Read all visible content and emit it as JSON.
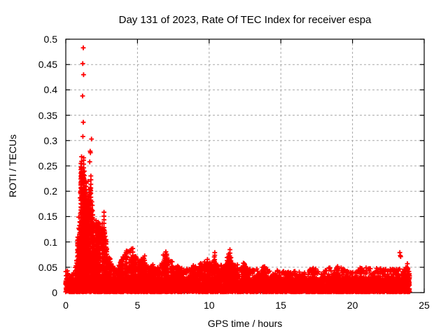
{
  "chart_data": {
    "type": "scatter",
    "title": "Day 131 of 2023, Rate Of TEC Index for receiver espa",
    "xlabel": "GPS time / hours",
    "ylabel": "ROTI / TECUs",
    "xlim": [
      0,
      25
    ],
    "ylim": [
      0,
      0.5
    ],
    "xtick_values": [
      0,
      5,
      10,
      15,
      20,
      25
    ],
    "xtick_labels": [
      "0",
      "5",
      "10",
      "15",
      "20",
      "25"
    ],
    "ytick_values": [
      0,
      0.05,
      0.1,
      0.15,
      0.2,
      0.25,
      0.3,
      0.35,
      0.4,
      0.45,
      0.5
    ],
    "ytick_labels": [
      "0",
      "0.05",
      "0.1",
      "0.15",
      "0.2",
      "0.25",
      "0.3",
      "0.35",
      "0.4",
      "0.45",
      "0.5"
    ],
    "grid": true,
    "legend": "none",
    "marker": "plus",
    "colors": {
      "marker": "#ff0000",
      "grid": "#a8a8a8",
      "axis": "#000000",
      "text": "#000000",
      "background": "#ffffff"
    },
    "data_time_range_hours": [
      0,
      24
    ],
    "baseline_band_max_tecu": 0.03,
    "envelope_max_roti": [
      [
        0.0,
        0.055
      ],
      [
        0.15,
        0.04
      ],
      [
        0.3,
        0.032
      ],
      [
        0.5,
        0.038
      ],
      [
        0.7,
        0.06
      ],
      [
        0.85,
        0.13
      ],
      [
        1.0,
        0.24
      ],
      [
        1.1,
        0.29
      ],
      [
        1.25,
        0.3
      ],
      [
        1.4,
        0.27
      ],
      [
        1.55,
        0.26
      ],
      [
        1.7,
        0.26
      ],
      [
        1.85,
        0.21
      ],
      [
        2.0,
        0.17
      ],
      [
        2.15,
        0.14
      ],
      [
        2.3,
        0.17
      ],
      [
        2.5,
        0.15
      ],
      [
        2.7,
        0.17
      ],
      [
        2.85,
        0.11
      ],
      [
        3.0,
        0.085
      ],
      [
        3.2,
        0.065
      ],
      [
        3.4,
        0.055
      ],
      [
        3.6,
        0.055
      ],
      [
        3.8,
        0.07
      ],
      [
        4.0,
        0.085
      ],
      [
        4.2,
        0.105
      ],
      [
        4.4,
        0.095
      ],
      [
        4.6,
        0.105
      ],
      [
        4.8,
        0.09
      ],
      [
        5.0,
        0.08
      ],
      [
        5.2,
        0.075
      ],
      [
        5.4,
        0.088
      ],
      [
        5.6,
        0.065
      ],
      [
        5.8,
        0.06
      ],
      [
        6.0,
        0.062
      ],
      [
        6.2,
        0.055
      ],
      [
        6.4,
        0.052
      ],
      [
        6.6,
        0.06
      ],
      [
        6.8,
        0.09
      ],
      [
        7.0,
        0.095
      ],
      [
        7.2,
        0.08
      ],
      [
        7.4,
        0.07
      ],
      [
        7.6,
        0.055
      ],
      [
        7.8,
        0.062
      ],
      [
        8.0,
        0.058
      ],
      [
        8.2,
        0.052
      ],
      [
        8.4,
        0.05
      ],
      [
        8.6,
        0.055
      ],
      [
        8.8,
        0.06
      ],
      [
        9.0,
        0.062
      ],
      [
        9.2,
        0.058
      ],
      [
        9.4,
        0.068
      ],
      [
        9.6,
        0.062
      ],
      [
        9.8,
        0.072
      ],
      [
        10.0,
        0.068
      ],
      [
        10.2,
        0.078
      ],
      [
        10.35,
        0.09
      ],
      [
        10.5,
        0.068
      ],
      [
        10.7,
        0.06
      ],
      [
        10.9,
        0.055
      ],
      [
        11.1,
        0.06
      ],
      [
        11.3,
        0.08
      ],
      [
        11.45,
        0.098
      ],
      [
        11.6,
        0.07
      ],
      [
        11.8,
        0.062
      ],
      [
        12.0,
        0.055
      ],
      [
        12.2,
        0.05
      ],
      [
        12.45,
        0.069
      ],
      [
        12.7,
        0.054
      ],
      [
        12.9,
        0.048
      ],
      [
        13.1,
        0.045
      ],
      [
        13.3,
        0.05
      ],
      [
        13.5,
        0.045
      ],
      [
        13.8,
        0.066
      ],
      [
        14.0,
        0.05
      ],
      [
        14.25,
        0.044
      ],
      [
        14.5,
        0.04
      ],
      [
        14.75,
        0.045
      ],
      [
        15.0,
        0.04
      ],
      [
        15.3,
        0.044
      ],
      [
        15.6,
        0.04
      ],
      [
        15.9,
        0.045
      ],
      [
        16.2,
        0.04
      ],
      [
        16.5,
        0.044
      ],
      [
        16.8,
        0.04
      ],
      [
        17.1,
        0.048
      ],
      [
        17.3,
        0.059
      ],
      [
        17.5,
        0.044
      ],
      [
        17.8,
        0.04
      ],
      [
        18.1,
        0.044
      ],
      [
        18.4,
        0.05
      ],
      [
        18.7,
        0.054
      ],
      [
        18.95,
        0.062
      ],
      [
        19.2,
        0.05
      ],
      [
        19.5,
        0.044
      ],
      [
        19.8,
        0.04
      ],
      [
        20.1,
        0.044
      ],
      [
        20.4,
        0.048
      ],
      [
        20.7,
        0.05
      ],
      [
        21.0,
        0.056
      ],
      [
        21.2,
        0.05
      ],
      [
        21.5,
        0.045
      ],
      [
        21.8,
        0.05
      ],
      [
        22.1,
        0.05
      ],
      [
        22.4,
        0.054
      ],
      [
        22.7,
        0.05
      ],
      [
        23.0,
        0.046
      ],
      [
        23.2,
        0.05
      ],
      [
        23.4,
        0.05
      ],
      [
        23.6,
        0.052
      ],
      [
        23.8,
        0.058
      ],
      [
        24.0,
        0.055
      ]
    ],
    "outlier_points": [
      [
        1.22,
        0.483
      ],
      [
        1.18,
        0.452
      ],
      [
        1.24,
        0.43
      ],
      [
        1.17,
        0.388
      ],
      [
        1.22,
        0.336
      ],
      [
        1.19,
        0.308
      ],
      [
        1.79,
        0.303
      ],
      [
        1.7,
        0.279
      ],
      [
        1.72,
        0.276
      ],
      [
        1.67,
        0.258
      ],
      [
        23.3,
        0.079
      ],
      [
        23.33,
        0.073
      ],
      [
        23.36,
        0.071
      ]
    ],
    "seed": 1131
  }
}
